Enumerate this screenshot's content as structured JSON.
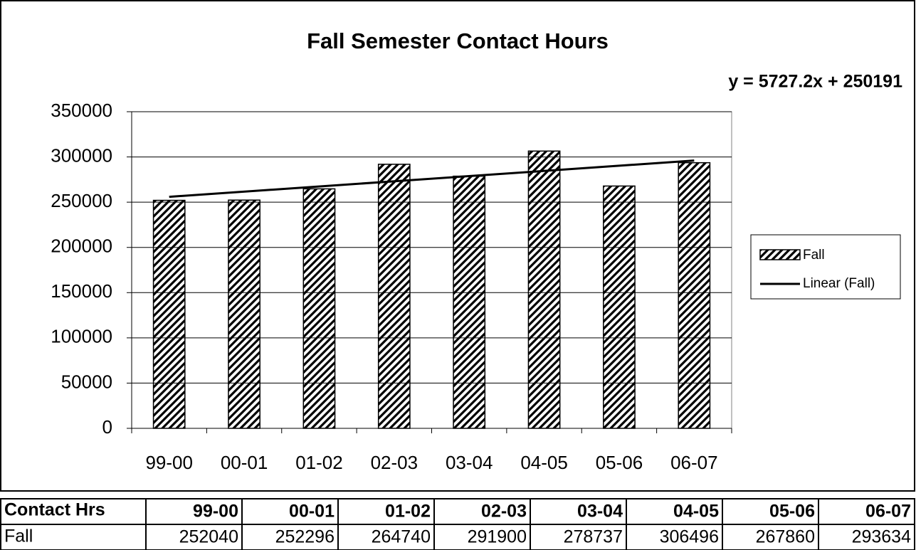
{
  "chart_data": {
    "type": "bar",
    "title": "Fall Semester Contact Hours",
    "annotation": "y = 5727.2x + 250191",
    "series_name": "Fall",
    "trendline_name": "Linear (Fall)",
    "categories": [
      "99-00",
      "00-01",
      "01-02",
      "02-03",
      "03-04",
      "04-05",
      "05-06",
      "06-07"
    ],
    "values": [
      252040,
      252296,
      264740,
      291900,
      278737,
      306496,
      267860,
      293634
    ],
    "color": "#000000",
    "ylim": [
      0,
      350000
    ],
    "yticks": [
      0,
      50000,
      100000,
      150000,
      200000,
      250000,
      300000,
      350000
    ],
    "grid": true,
    "legend": "right",
    "trendline": "linear"
  },
  "table": {
    "header": "Contact Hrs"
  }
}
